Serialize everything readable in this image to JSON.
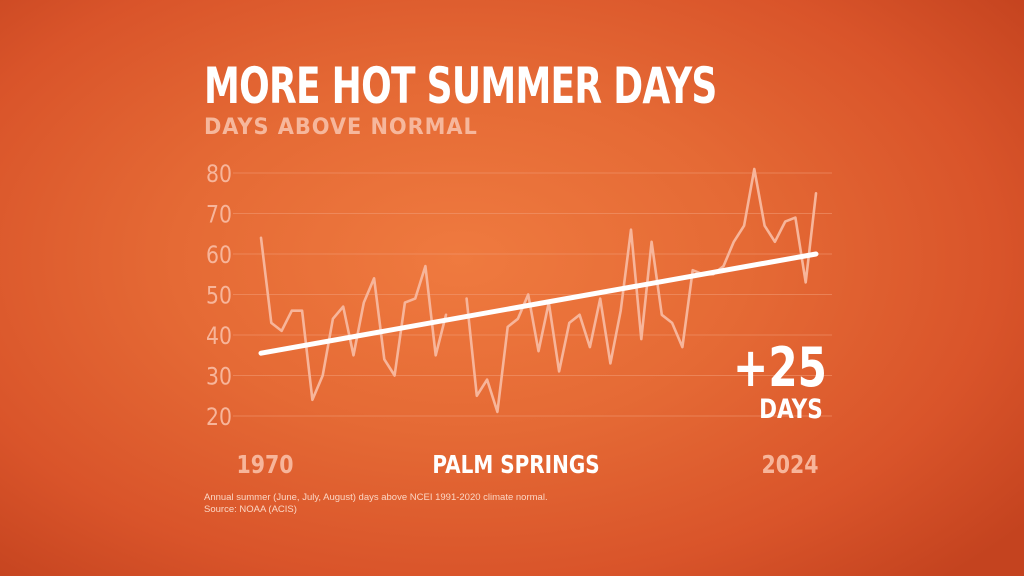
{
  "header": {
    "title": "MORE HOT SUMMER DAYS",
    "subtitle": "DAYS ABOVE NORMAL"
  },
  "footnote": {
    "line1": "Annual summer (June, July, August) days above NCEI 1991-2020 climate normal.",
    "line2": "Source: NOAA (ACIS)"
  },
  "callout": {
    "value": "+25",
    "unit": "DAYS"
  },
  "colors": {
    "line": "#f7b59a",
    "trend": "#ffffff",
    "tick": "#f7b59a",
    "gridline": "#f39a74"
  },
  "chart_data": {
    "type": "line",
    "title": "MORE HOT SUMMER DAYS",
    "subtitle": "DAYS ABOVE NORMAL",
    "location_label": "PALM SPRINGS",
    "xlabel": "",
    "ylabel": "",
    "x_tick_labels": [
      "1970",
      "2024"
    ],
    "xlim": [
      1970,
      2024
    ],
    "ylim": [
      20,
      80
    ],
    "y_ticks": [
      20,
      30,
      40,
      50,
      60,
      70,
      80
    ],
    "grid": true,
    "series": [
      {
        "x": [
          1970,
          1971,
          1972,
          1973,
          1974,
          1975,
          1976,
          1977,
          1978,
          1979,
          1980,
          1981,
          1982,
          1983,
          1984,
          1985,
          1986,
          1987,
          1988,
          1989,
          1990,
          1991,
          1992,
          1993,
          1994,
          1995,
          1996,
          1997,
          1998,
          1999,
          2000,
          2001,
          2002,
          2003,
          2004,
          2005,
          2006,
          2007,
          2008,
          2009,
          2010,
          2011,
          2012,
          2013,
          2014,
          2015,
          2016,
          2017,
          2018,
          2019,
          2020,
          2021,
          2022,
          2023,
          2024
        ],
        "values": [
          64,
          43,
          41,
          46,
          46,
          24,
          30,
          44,
          47,
          35,
          48,
          54,
          34,
          30,
          48,
          49,
          57,
          35,
          45,
          null,
          49,
          25,
          29,
          21,
          42,
          44,
          50,
          36,
          48,
          31,
          43,
          45,
          37,
          49,
          33,
          46,
          66,
          39,
          63,
          45,
          43,
          37,
          56,
          55,
          55,
          57,
          63,
          67,
          81,
          67,
          63,
          68,
          69,
          53,
          75
        ]
      }
    ],
    "trend": {
      "start": [
        1970,
        35.5
      ],
      "end": [
        2024,
        60
      ]
    },
    "annotations": [
      "+25",
      "DAYS"
    ]
  }
}
